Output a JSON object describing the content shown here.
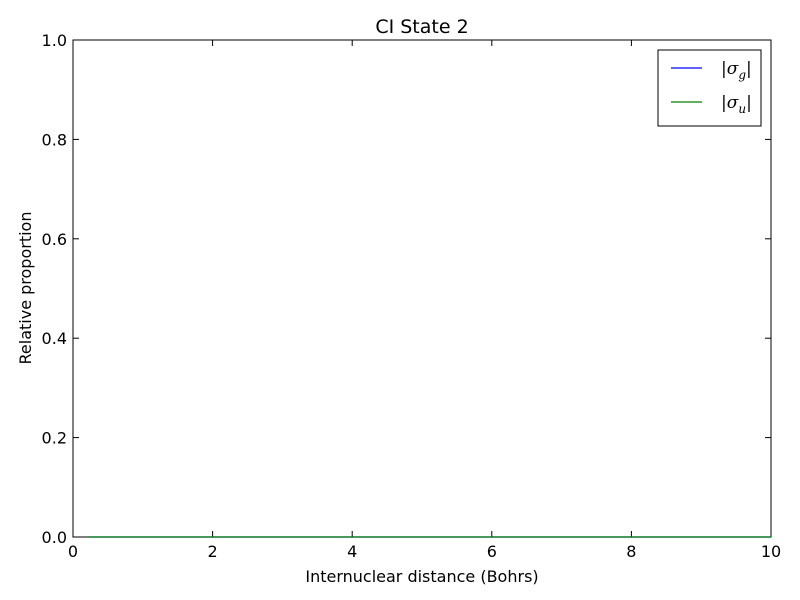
{
  "chart_data": {
    "type": "line",
    "title": "CI State 2",
    "xlabel": "Internuclear distance (Bohrs)",
    "ylabel": "Relative proportion",
    "xlim": [
      0,
      10
    ],
    "ylim": [
      0,
      1.0
    ],
    "xticks": [
      "0",
      "2",
      "4",
      "6",
      "8",
      "10"
    ],
    "yticks": [
      "0.0",
      "0.2",
      "0.4",
      "0.6",
      "0.8",
      "1.0"
    ],
    "grid": false,
    "legend_position": "top-right",
    "series": [
      {
        "name": "|σg|",
        "legend_main": "|σ",
        "legend_sub": "g",
        "legend_close": "|",
        "color": "#0000ff",
        "x": [
          0.2,
          1,
          2,
          3,
          4,
          5,
          6,
          7,
          8,
          9,
          10
        ],
        "y": [
          0,
          0,
          0,
          0,
          0,
          0,
          0,
          0,
          0,
          0,
          0
        ]
      },
      {
        "name": "|σu|",
        "legend_main": "|σ",
        "legend_sub": "u",
        "legend_close": "|",
        "color": "#008000",
        "x": [
          0.2,
          1,
          2,
          3,
          4,
          5,
          6,
          7,
          8,
          9,
          10
        ],
        "y": [
          0,
          0,
          0,
          0,
          0,
          0,
          0,
          0,
          0,
          0,
          0
        ]
      }
    ]
  }
}
